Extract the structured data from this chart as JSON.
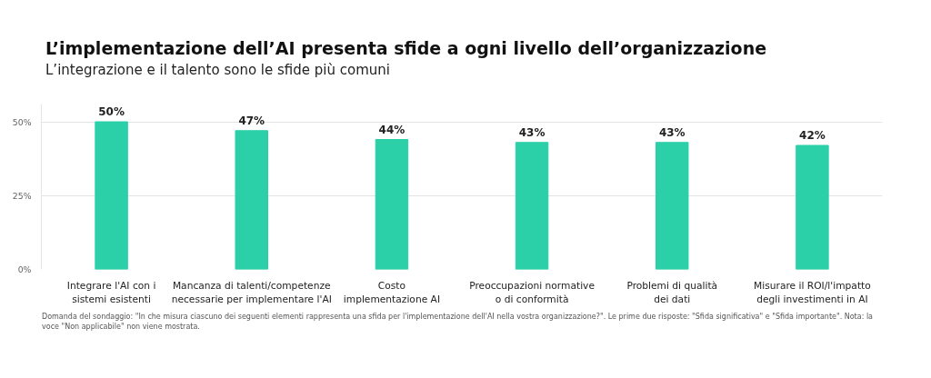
{
  "chart_data": {
    "type": "bar",
    "title": "L’implementazione dell’AI presenta sfide a ogni livello dell’organizzazione",
    "subtitle": "L’integrazione e il talento sono le sfide più comuni",
    "categories": [
      "Integrare l'AI con i\nsistemi esistenti",
      "Mancanza di talenti/competenze\nnecessarie per implementare l'AI",
      "Costo\nimplementazione AI",
      "Preoccupazioni normative\no di conformità",
      "Problemi di qualità\ndei dati",
      "Misurare il ROI/l'impatto\ndegli investimenti in AI"
    ],
    "values": [
      50,
      47,
      44,
      43,
      43,
      42
    ],
    "value_labels": [
      "50%",
      "47%",
      "44%",
      "43%",
      "43%",
      "42%"
    ],
    "color": "#2bd0a8",
    "ylim": [
      0,
      56
    ],
    "yticks": [
      {
        "value": 0,
        "label": "0%"
      },
      {
        "value": 25,
        "label": "25%"
      },
      {
        "value": 50,
        "label": "50%"
      }
    ],
    "grid": "y",
    "annotations": [
      "Domanda del sondaggio: \"In che misura ciascuno dei seguenti elementi rappresenta una sfida per l'implementazione dell'AI nella vostra organizzazione?\". Le prime due risposte: \"Sfida significativa\" e \"Sfida importante\". Nota: la voce \"Non applicabile\" non viene mostrata."
    ]
  }
}
